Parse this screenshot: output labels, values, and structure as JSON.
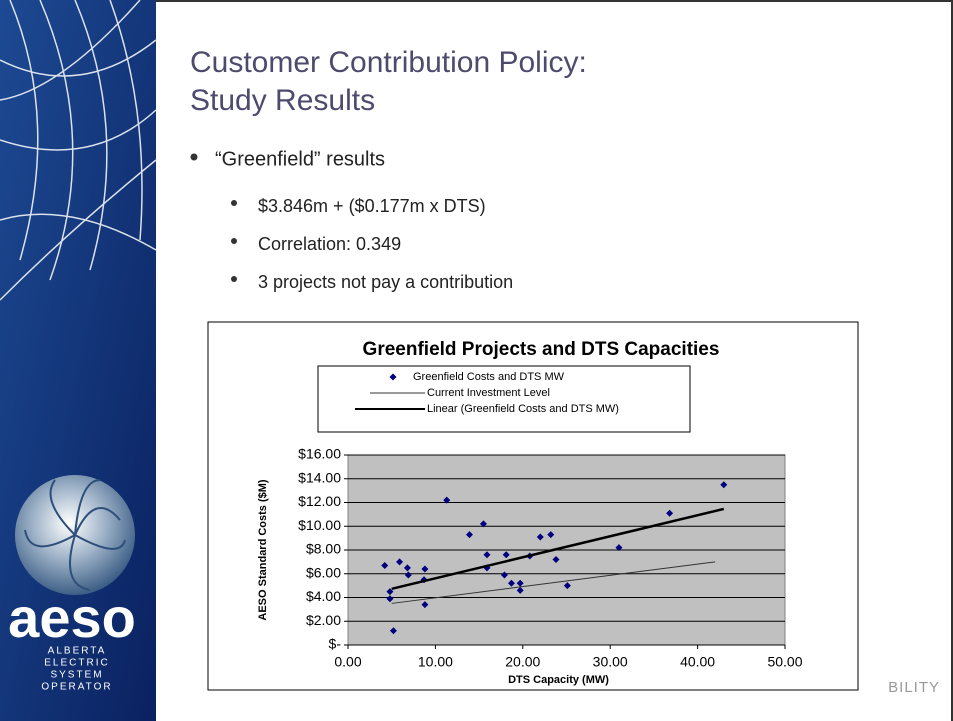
{
  "slide": {
    "title_lines": [
      "Customer Contribution Policy:",
      "Study Results"
    ],
    "bullet": "“Greenfield” results",
    "sub_bullets": [
      "$3.846m + ($0.177m x DTS)",
      "Correlation: 0.349",
      "3 projects not pay a contribution"
    ],
    "logo_text": "aeso",
    "logo_subtext": [
      "ALBERTA",
      "ELECTRIC",
      "SYSTEM",
      "OPERATOR"
    ],
    "footer_fragment": "BILITY"
  },
  "chart_data": {
    "type": "scatter",
    "title": "Greenfield Projects and DTS Capacities",
    "x_label": "DTS Capacity (MW)",
    "y_label": "AESO Standard Costs ($M)",
    "xlim": [
      0,
      50
    ],
    "ylim": [
      0,
      16
    ],
    "xticks": [
      {
        "value": 0,
        "label": "0.00"
      },
      {
        "value": 10,
        "label": "10.00"
      },
      {
        "value": 20,
        "label": "20.00"
      },
      {
        "value": 30,
        "label": "30.00"
      },
      {
        "value": 40,
        "label": "40.00"
      },
      {
        "value": 50,
        "label": "50.00"
      }
    ],
    "yticks": [
      {
        "value": 0,
        "label": "$-"
      },
      {
        "value": 2,
        "label": "$2.00"
      },
      {
        "value": 4,
        "label": "$4.00"
      },
      {
        "value": 6,
        "label": "$6.00"
      },
      {
        "value": 8,
        "label": "$8.00"
      },
      {
        "value": 10,
        "label": "$10.00"
      },
      {
        "value": 12,
        "label": "$12.00"
      },
      {
        "value": 14,
        "label": "$14.00"
      },
      {
        "value": 16,
        "label": "$16.00"
      }
    ],
    "grid": true,
    "series": [
      {
        "name": "Greenfield Costs and DTS MW",
        "color": "#00007f",
        "mode": "markers",
        "x": [
          5.2,
          4.2,
          4.8,
          4.8,
          5.9,
          6.8,
          6.9,
          8.8,
          8.7,
          8.8,
          11.3,
          13.9,
          15.5,
          15.9,
          15.9,
          17.9,
          18.1,
          18.7,
          19.7,
          19.7,
          20.8,
          22.0,
          23.2,
          23.8,
          25.1,
          31.0,
          36.8,
          43.0
        ],
        "values": [
          1.2,
          6.7,
          4.5,
          3.9,
          7.0,
          6.5,
          5.9,
          6.4,
          5.5,
          3.4,
          12.2,
          9.3,
          10.2,
          7.6,
          6.5,
          5.9,
          7.6,
          5.2,
          5.2,
          4.6,
          7.5,
          9.1,
          9.3,
          7.2,
          5.0,
          8.2,
          11.1,
          13.5
        ]
      },
      {
        "name": "Current Investment Level",
        "color": "#333333",
        "mode": "thin-line",
        "x": [
          5,
          42
        ],
        "values": [
          3.5,
          7.0
        ]
      },
      {
        "name": "Linear (Greenfield Costs and DTS MW)",
        "color": "#000000",
        "mode": "thick-line",
        "x": [
          5,
          43
        ],
        "values": [
          4.73,
          11.46
        ]
      }
    ]
  }
}
